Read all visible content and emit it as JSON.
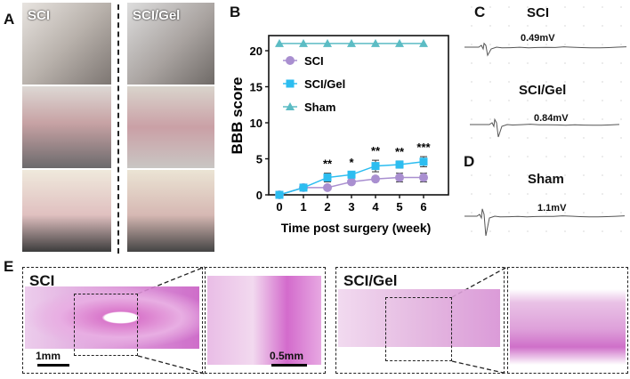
{
  "panels": {
    "a": "A",
    "b": "B",
    "c": "C",
    "d": "D",
    "e": "E"
  },
  "panel_a": {
    "left_label": "SCI",
    "right_label": "SCI/Gel"
  },
  "panel_c": {
    "traces": [
      {
        "title": "SCI",
        "amplitude": "0.49mV"
      },
      {
        "title": "SCI/Gel",
        "amplitude": "0.84mV"
      }
    ]
  },
  "panel_d": {
    "title": "Sham",
    "amplitude": "1.1mV"
  },
  "panel_e": {
    "left_label": "SCI",
    "right_label": "SCI/Gel",
    "scale_left": "1mm",
    "scale_zoom": "0.5mm"
  },
  "chart_data": {
    "type": "line",
    "title": "",
    "xlabel": "Time post surgery (week)",
    "ylabel": "BBB score",
    "x": [
      0,
      1,
      2,
      3,
      4,
      5,
      6
    ],
    "xlim": [
      0,
      6
    ],
    "ylim": [
      0,
      21
    ],
    "yticks": [
      0,
      5,
      10,
      15,
      20
    ],
    "legend": "top-left",
    "series": [
      {
        "name": "SCI",
        "marker": "circle",
        "color": "#a98fd0",
        "values": [
          0,
          1,
          1,
          1.8,
          2.2,
          2.4,
          2.4
        ],
        "errors": [
          0,
          0.1,
          0.2,
          0.3,
          0.3,
          0.6,
          0.6
        ]
      },
      {
        "name": "SCI/Gel",
        "marker": "square",
        "color": "#2cbdf0",
        "values": [
          0,
          1,
          2.4,
          2.8,
          4,
          4.2,
          4.6
        ],
        "errors": [
          0,
          0.1,
          0.6,
          0.4,
          0.8,
          0.5,
          0.7
        ]
      },
      {
        "name": "Sham",
        "marker": "triangle",
        "color": "#5cbcc4",
        "values": [
          21,
          21,
          21,
          21,
          21,
          21,
          21
        ],
        "errors": [
          0,
          0,
          0,
          0,
          0,
          0,
          0
        ]
      }
    ],
    "annotations": [
      {
        "x": 2,
        "text": "**"
      },
      {
        "x": 3,
        "text": "*"
      },
      {
        "x": 4,
        "text": "**"
      },
      {
        "x": 5,
        "text": "**"
      },
      {
        "x": 6,
        "text": "***"
      }
    ]
  }
}
